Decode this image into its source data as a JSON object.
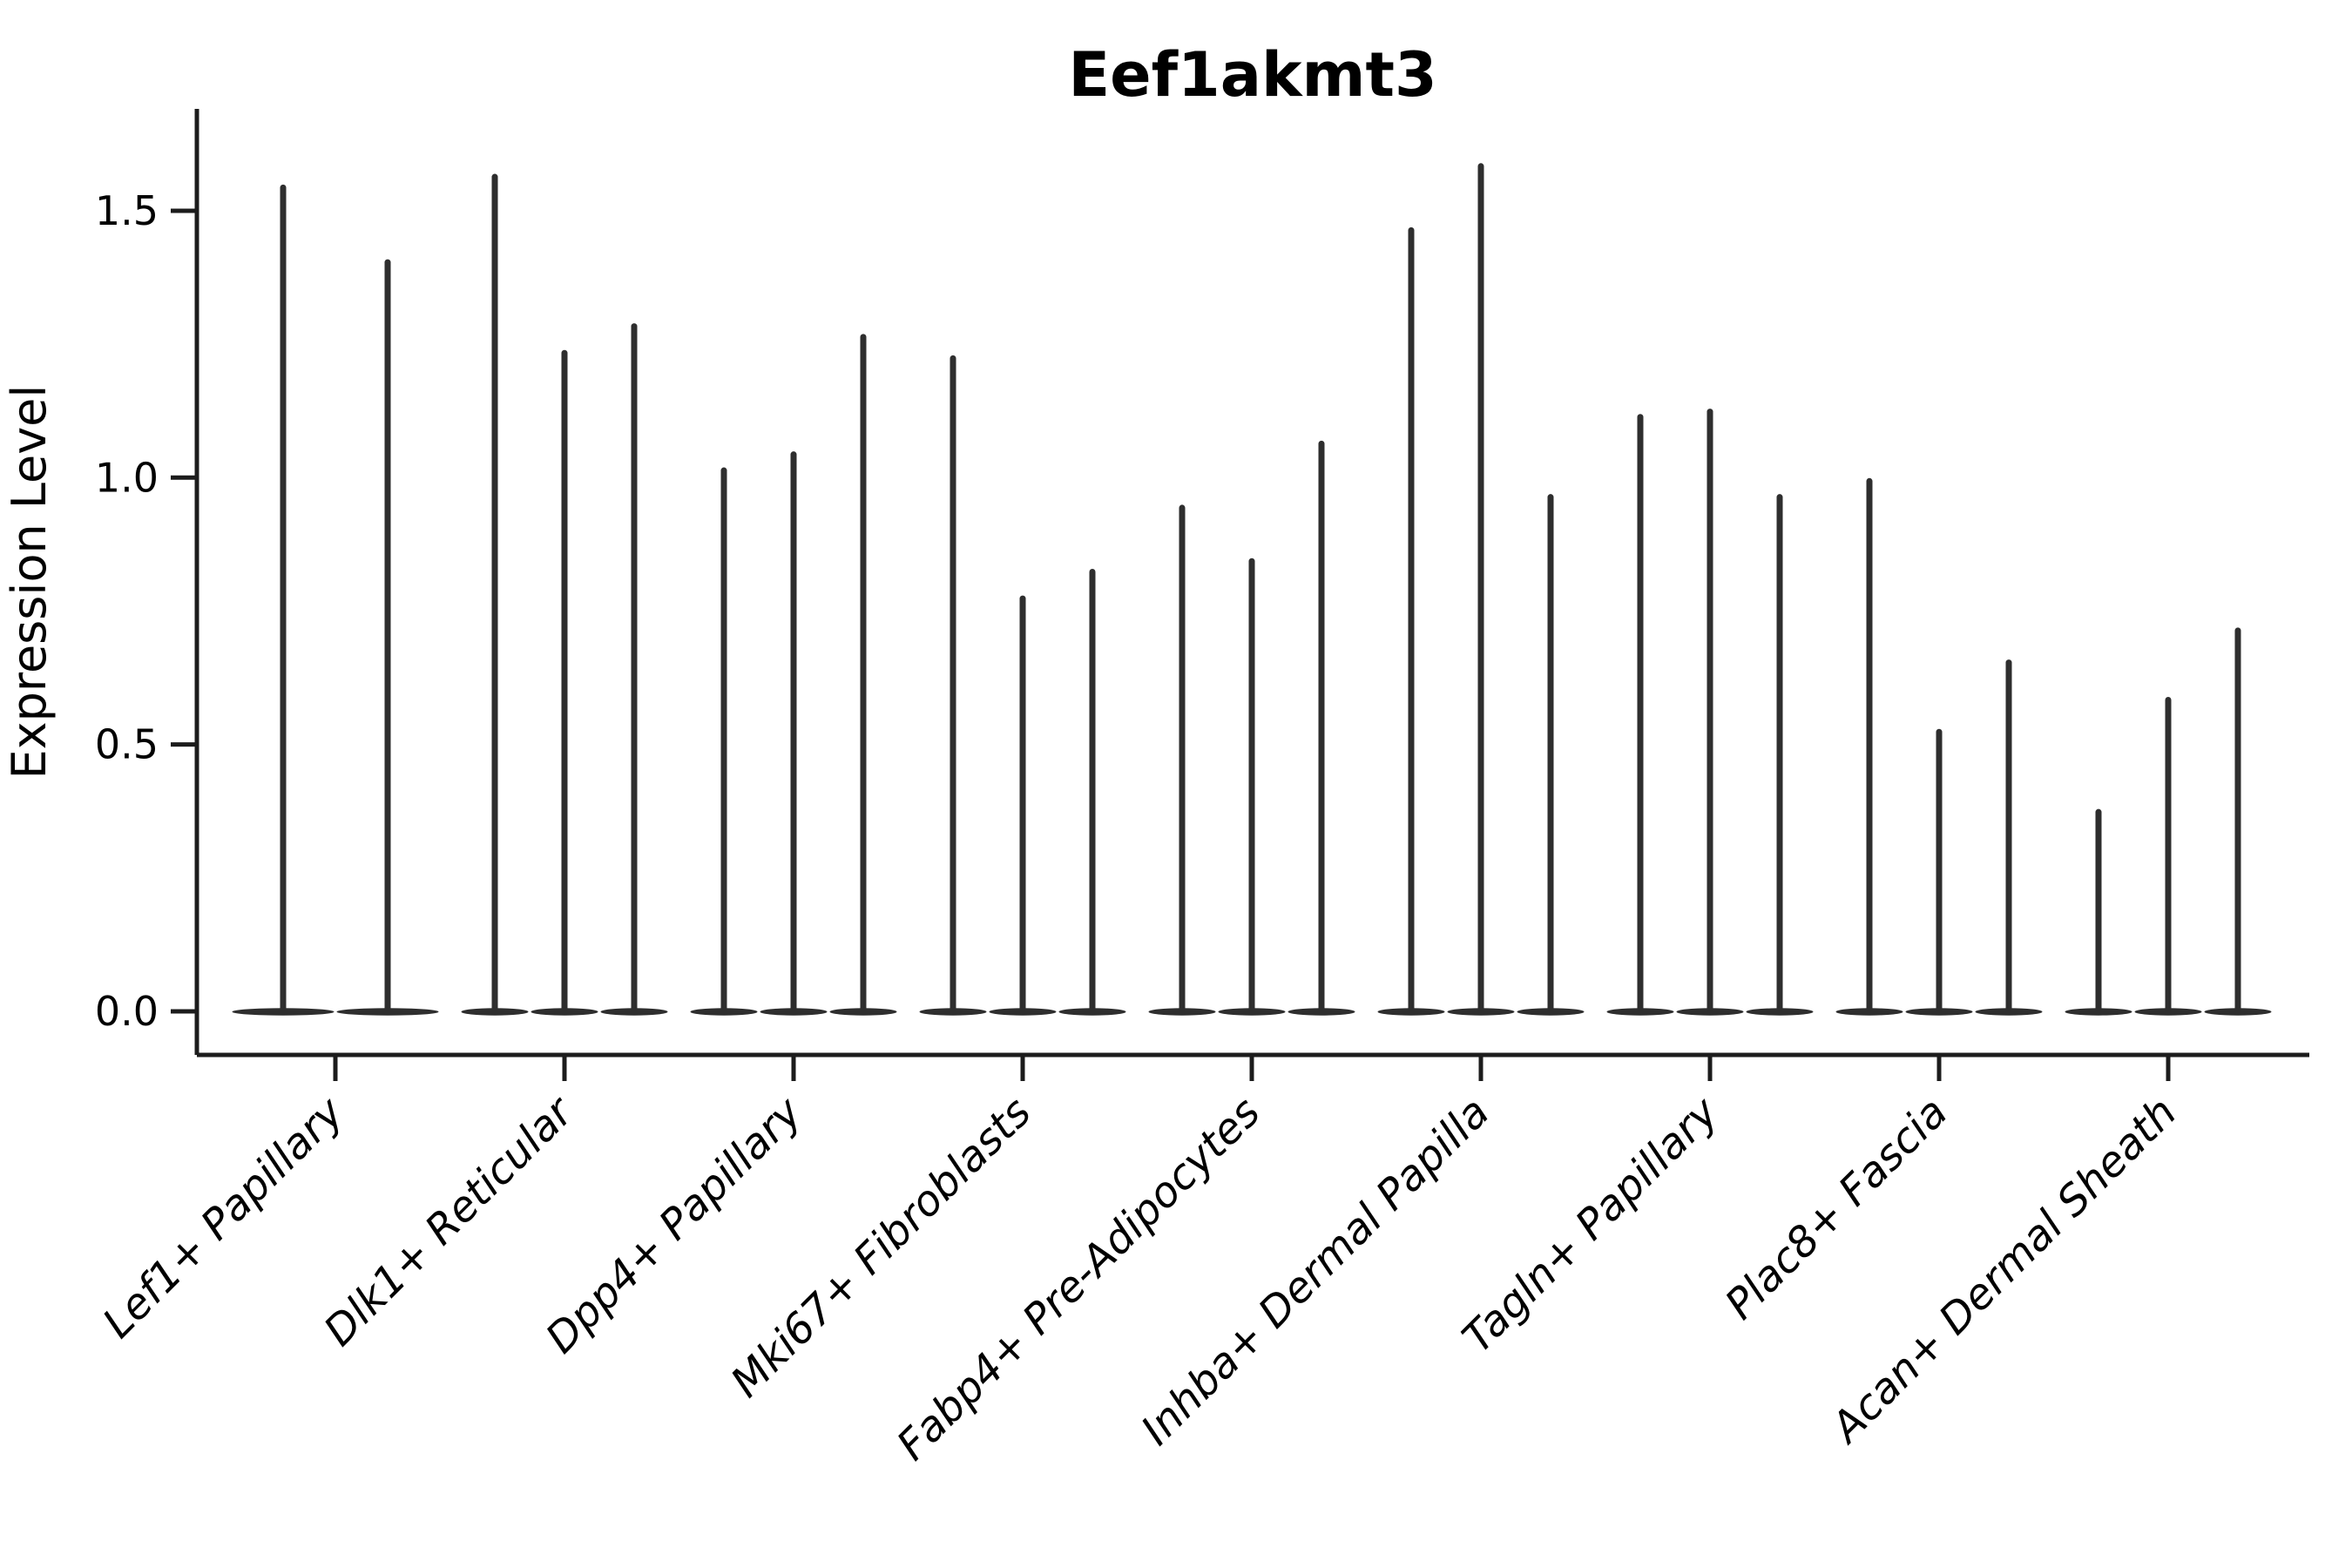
{
  "title": "Eef1akmt3",
  "axes": {
    "ylabel": "Expression Level",
    "ytick_labels": [
      "0.0",
      "0.5",
      "1.0",
      "1.5"
    ],
    "ytick_values": [
      0.0,
      0.5,
      1.0,
      1.5
    ]
  },
  "colors": {
    "violin": "#2e2e2e",
    "spine": "#1c1c1c",
    "tick": "#1c1c1c",
    "background": "#ffffff"
  },
  "chart_data": {
    "type": "violin",
    "title": "Eef1akmt3",
    "xlabel": "",
    "ylabel": "Expression Level",
    "ylim": [
      -0.08,
      1.69
    ],
    "yticks": [
      0.0,
      0.5,
      1.0,
      1.5
    ],
    "grid": false,
    "legend": false,
    "baseline_value": 0.0,
    "categories": [
      "Lef1+ Papillary",
      "Dlk1+ Reticular",
      "Dpp4+ Papillary",
      "Mki67+ Fibroblasts",
      "Fabp4+ Pre-Adipocytes",
      "Inhba+ Dermal Papilla",
      "Tagln+ Papillary",
      "Plac8+ Fascia",
      "Acan+ Dermal Sheath"
    ],
    "violins_per_category": [
      2,
      3,
      3,
      3,
      3,
      3,
      3,
      3,
      3
    ],
    "max_expression": [
      [
        1.55,
        1.41
      ],
      [
        1.57,
        1.24,
        1.29
      ],
      [
        1.02,
        1.05,
        1.27
      ],
      [
        1.23,
        0.78,
        0.83
      ],
      [
        0.95,
        0.85,
        1.07
      ],
      [
        1.47,
        1.59,
        0.97
      ],
      [
        1.12,
        1.13,
        0.97
      ],
      [
        1.0,
        0.53,
        0.66
      ],
      [
        0.38,
        0.59,
        0.72
      ]
    ],
    "shape_note": "Each violin collapses to a flat dense mass at expression 0 with a single thin vertical tail reaching its maximum value."
  }
}
